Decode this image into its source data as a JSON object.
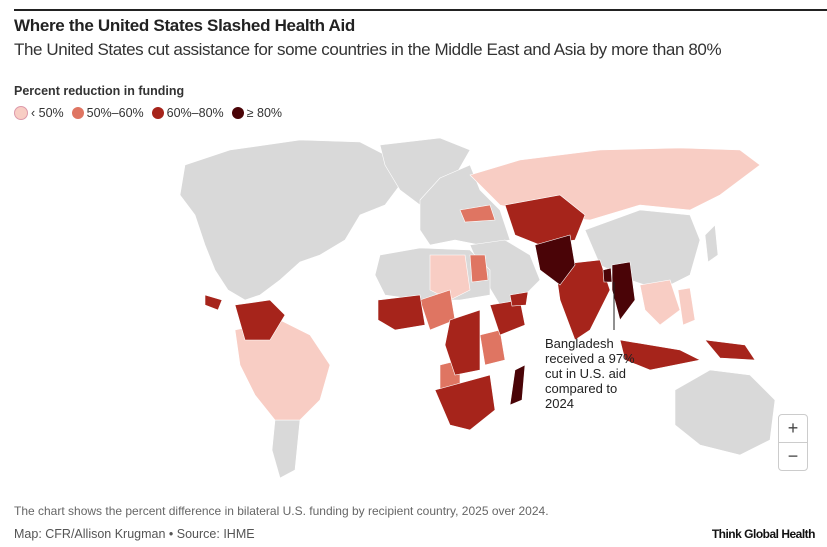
{
  "header": {
    "title": "Where the United States Slashed Health Aid",
    "subtitle": "The United States cut assistance for some countries in the Middle East and Asia by more than 80%"
  },
  "legend": {
    "title": "Percent reduction in funding",
    "items": [
      {
        "label": "‹ 50%",
        "color": "#f8cdc4"
      },
      {
        "label": "50%–60%",
        "color": "#df7562"
      },
      {
        "label": "60%–80%",
        "color": "#a6241b"
      },
      {
        "label": "≥ 80%",
        "color": "#4a0407"
      }
    ]
  },
  "map": {
    "land_color": "#d9d9d9",
    "annotation": "Bangladesh received a 97% cut in U.S. aid compared to 2024",
    "zoom_in": "+",
    "zoom_out": "−"
  },
  "footer": {
    "note": "The chart shows the percent difference in bilateral U.S. funding by recipient country, 2025 over 2024.",
    "credit": "Map: CFR/Allison Krugman • Source: IHME",
    "brand": "Think Global Health"
  }
}
